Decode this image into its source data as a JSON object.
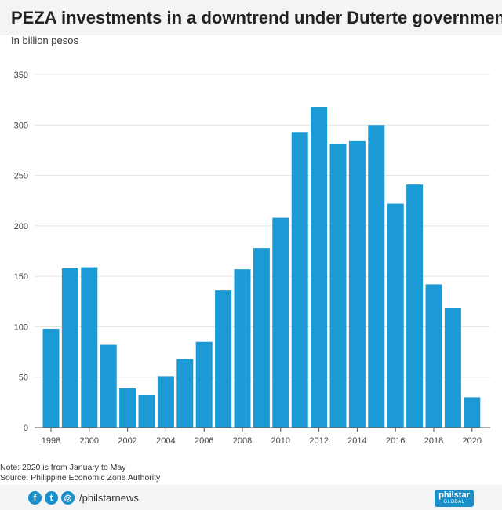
{
  "header": {
    "title": "PEZA investments in a downtrend under Duterte government",
    "subtitle": "In billion pesos"
  },
  "chart_data": {
    "type": "bar",
    "title": "PEZA investments in a downtrend under Duterte government",
    "subtitle": "In billion pesos",
    "xlabel": "",
    "ylabel": "",
    "categories": [
      "1998",
      "1999",
      "2000",
      "2001",
      "2002",
      "2003",
      "2004",
      "2005",
      "2006",
      "2007",
      "2008",
      "2009",
      "2010",
      "2011",
      "2012",
      "2013",
      "2014",
      "2015",
      "2016",
      "2017",
      "2018",
      "2019",
      "2020"
    ],
    "values": [
      98,
      158,
      159,
      82,
      39,
      32,
      51,
      68,
      85,
      136,
      157,
      178,
      208,
      293,
      318,
      281,
      284,
      300,
      222,
      241,
      142,
      119,
      30
    ],
    "x_tick_labels": [
      "1998",
      "2000",
      "2002",
      "2004",
      "2006",
      "2008",
      "2010",
      "2012",
      "2014",
      "2016",
      "2018",
      "2020"
    ],
    "y_ticks": [
      0,
      50,
      100,
      150,
      200,
      250,
      300,
      350
    ],
    "ylim": [
      0,
      350
    ],
    "grid": true,
    "legend": "none",
    "bar_color": "#1b9ad6"
  },
  "notes": {
    "note": "Note: 2020 is from January to May",
    "source": "Source: Philippine Economic Zone Authority"
  },
  "footer": {
    "facebook_glyph": "f",
    "twitter_glyph": "t",
    "instagram_glyph": "◎",
    "handle": "/philstarnews",
    "logo_main": "philstar",
    "logo_sub": "GLOBAL",
    "accent": "#1b8fc9"
  }
}
